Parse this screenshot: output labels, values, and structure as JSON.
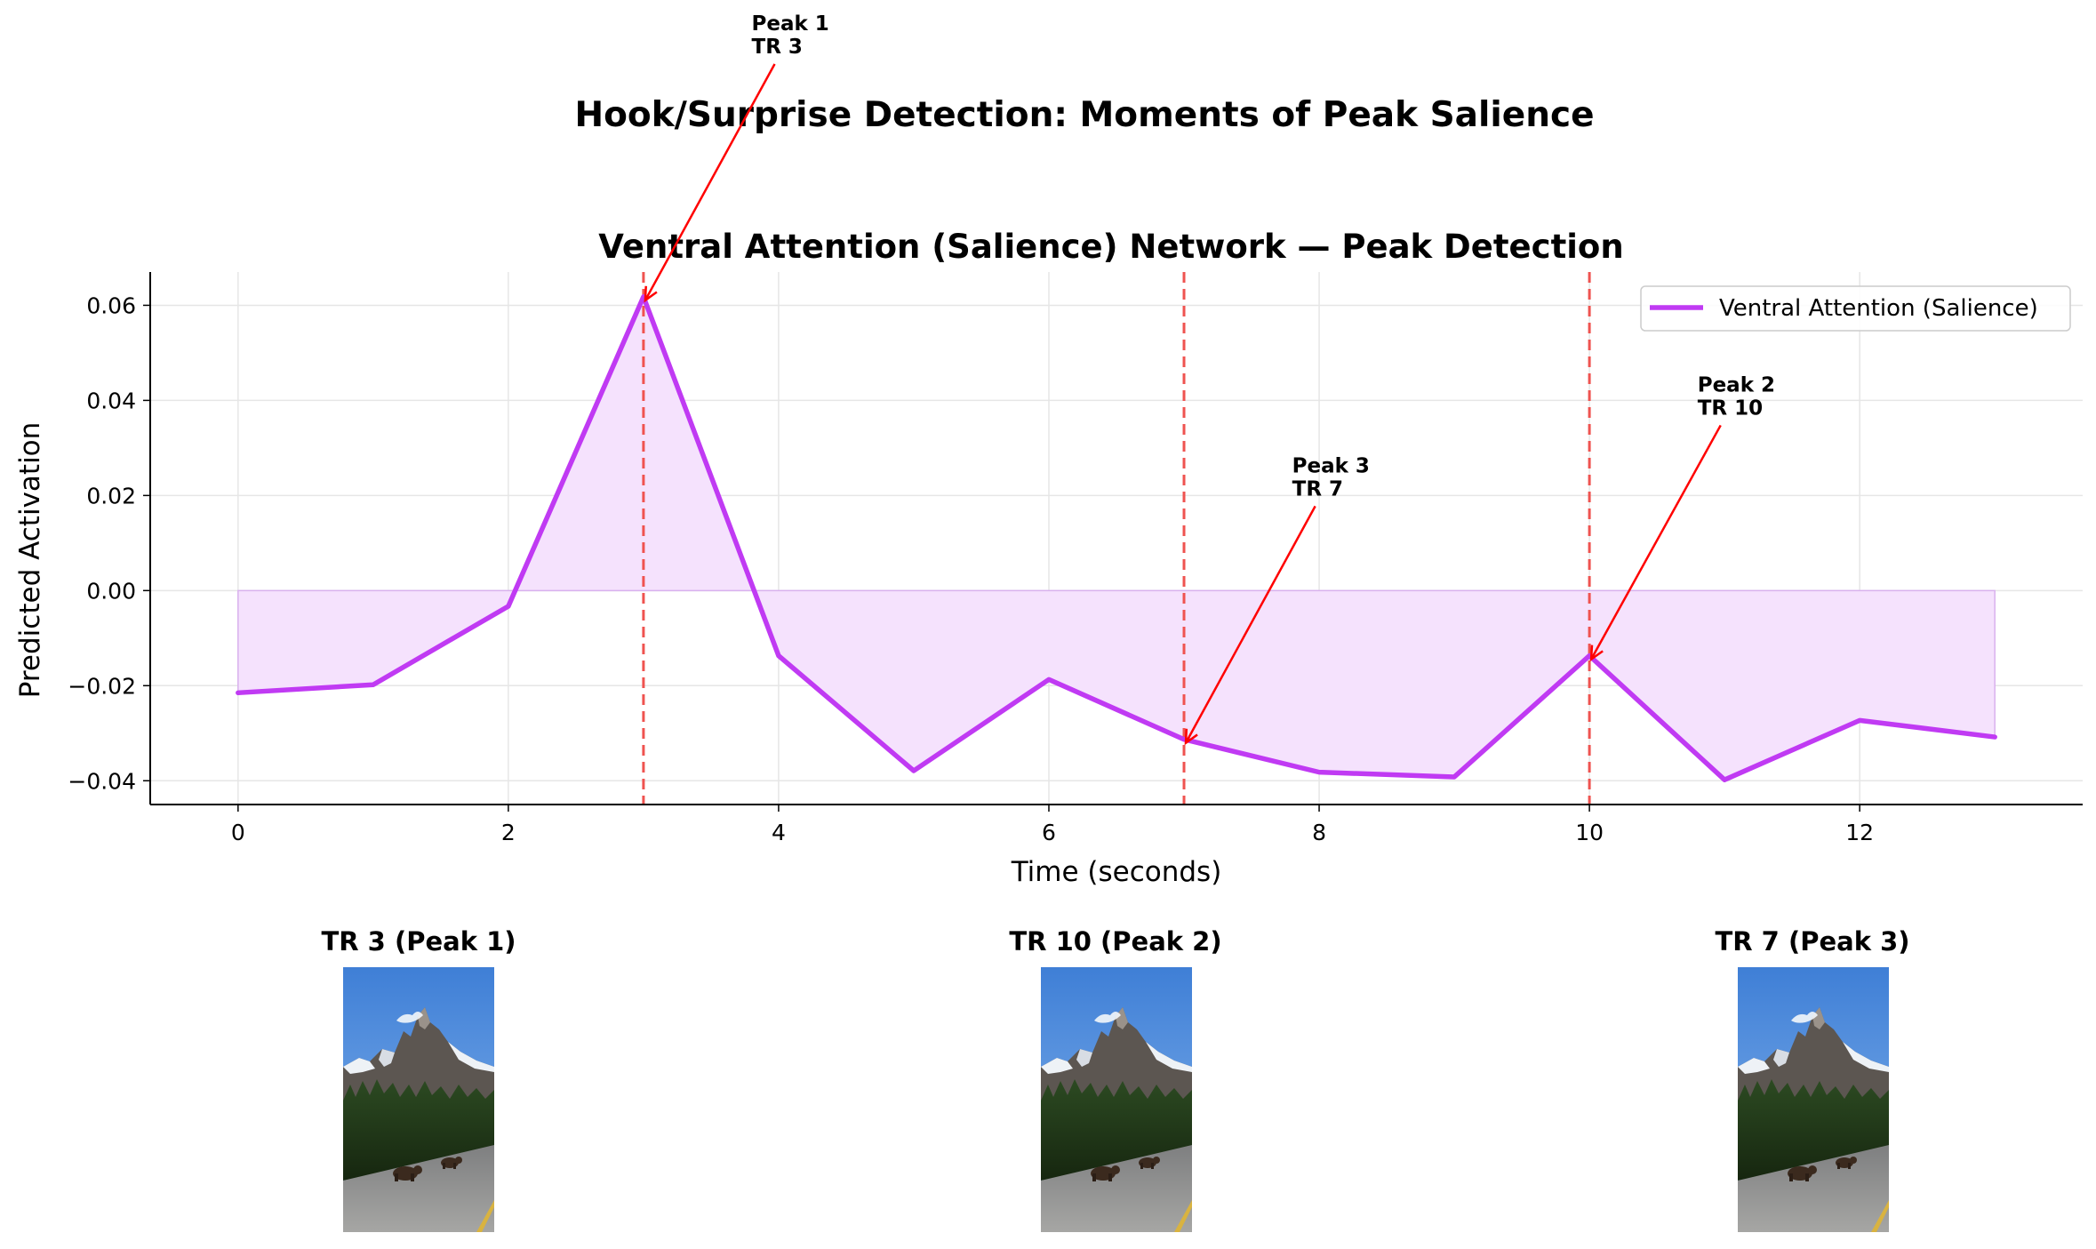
{
  "figure": {
    "suptitle": "Hook/Surprise Detection: Moments of Peak Salience"
  },
  "chart_data": {
    "type": "line",
    "title": "Ventral Attention (Salience) Network — Peak Detection",
    "xlabel": "Time (seconds)",
    "ylabel": "Predicted Activation",
    "xlim": [
      -0.65,
      13.65
    ],
    "ylim": [
      -0.045,
      0.067
    ],
    "xticks": [
      0,
      2,
      4,
      6,
      8,
      10,
      12
    ],
    "xtick_labels": [
      "0",
      "2",
      "4",
      "6",
      "8",
      "10",
      "12"
    ],
    "yticks": [
      -0.04,
      -0.02,
      0.0,
      0.02,
      0.04,
      0.06
    ],
    "ytick_labels": [
      "−0.04",
      "−0.02",
      "0.00",
      "0.02",
      "0.04",
      "0.06"
    ],
    "grid": true,
    "legend_position": "upper right",
    "series": [
      {
        "name": "Ventral Attention (Salience)",
        "color": "#c03af3",
        "fill_color": "#f5e2fd",
        "fill_to": 0,
        "x": [
          0,
          1,
          2,
          3,
          4,
          5,
          6,
          7,
          8,
          9,
          10,
          11,
          12,
          13
        ],
        "values": [
          -0.0215,
          -0.0198,
          -0.0033,
          0.0618,
          -0.0137,
          -0.0379,
          -0.0187,
          -0.0313,
          -0.0382,
          -0.0392,
          -0.0137,
          -0.0398,
          -0.0273,
          -0.0308
        ]
      }
    ],
    "peak_lines": {
      "color": "#ef5350",
      "x": [
        3,
        7,
        10
      ]
    },
    "annotations": [
      {
        "line1": "Peak 1",
        "line2": "TR 3",
        "x": 3,
        "y": 0.0618,
        "text_x": 3.8,
        "text_y": 0.113
      },
      {
        "line1": "Peak 2",
        "line2": "TR 10",
        "x": 10,
        "y": -0.0137,
        "text_x": 10.8,
        "text_y": 0.037
      },
      {
        "line1": "Peak 3",
        "line2": "TR 7",
        "x": 7,
        "y": -0.0313,
        "text_x": 7.8,
        "text_y": 0.02
      }
    ],
    "annotation_arrow_color": "#ff0000"
  },
  "thumbnails": [
    {
      "title": "TR 3 (Peak 1)",
      "image": "mountain-road-bear-frame"
    },
    {
      "title": "TR 10 (Peak 2)",
      "image": "mountain-road-bear-frame"
    },
    {
      "title": "TR 7 (Peak 3)",
      "image": "mountain-road-bear-frame"
    }
  ]
}
